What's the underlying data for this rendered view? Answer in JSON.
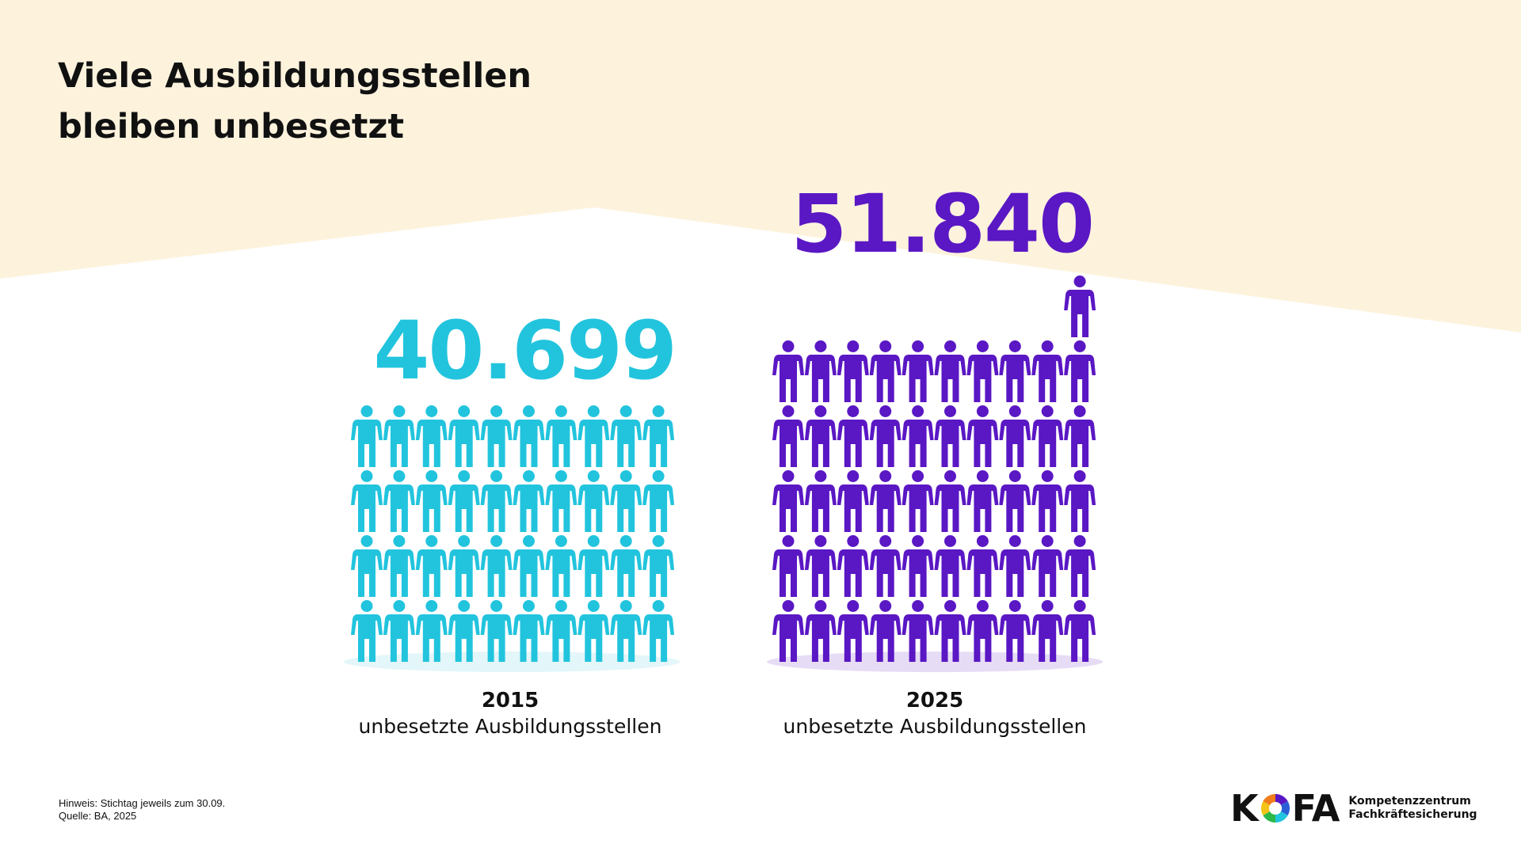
{
  "header": {
    "title_line1": "Viele Ausbildungsstellen",
    "title_line2": "bleiben unbesetzt"
  },
  "colors": {
    "background_band": "#fdf3dd",
    "series_2015": "#22c4dd",
    "series_2025": "#5a17c4",
    "shadow_2015": "#e3f6f9",
    "shadow_2025": "#e7dcf5"
  },
  "chart_data": {
    "type": "pictogram",
    "series": [
      {
        "category": "2015",
        "label": "unbesetzte Ausbildungsstellen",
        "value": 40699,
        "value_label": "40.699",
        "icon_count": 40,
        "icon_rows": 4,
        "icon_cols": 10,
        "extra_icons": 0
      },
      {
        "category": "2025",
        "label": "unbesetzte Ausbildungsstellen",
        "value": 51840,
        "value_label": "51.840",
        "icon_count": 51,
        "icon_rows": 5,
        "icon_cols": 10,
        "extra_icons": 1
      }
    ]
  },
  "footnote": {
    "line1": "Hinweis: Stichtag jeweils zum 30.09.",
    "line2": "Quelle: BA, 2025"
  },
  "logo": {
    "letter_k": "K",
    "letters_fa": "FA",
    "line1": "Kompetenzzentrum",
    "line2": "Fachkräftesicherung"
  }
}
